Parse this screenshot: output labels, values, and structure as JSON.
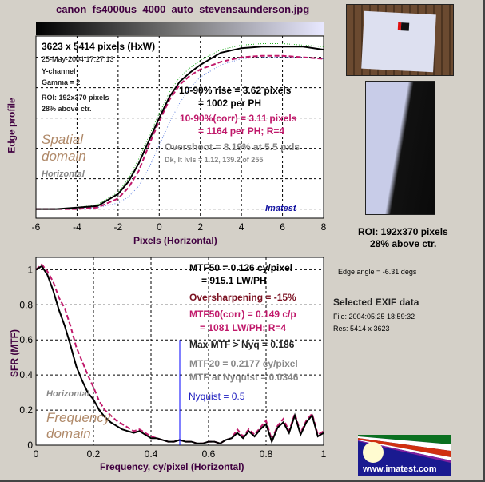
{
  "title": "canon_fs4000us_4000_auto_stevensaunderson.jpg",
  "colors": {
    "background": "#d4d0c8",
    "title": "#400040",
    "black_curve": "#000000",
    "corrected_curve": "#c0186a",
    "green_curve": "#20b020",
    "blue_curve": "#6080e0",
    "nyquist_line": "#0000ff",
    "domain_label": "#b08a6a"
  },
  "top_panel": {
    "size": "3623 x 5414 pixels (HxW)",
    "date": "25-May-2004 17:27:13",
    "channel": "Y-channel",
    "gamma": "Gamma = 2",
    "roi": "ROI: 192x370 pixels",
    "roi_pos": "28% above ctr.",
    "domain_1": "Spatial",
    "domain_2": "domain",
    "direction": "Horizontal",
    "rise": "10-90% rise = 3.62 pixels",
    "rise_ph": "= 1002 per PH",
    "rise_corr": "10-90%(corr) = 3.11 pixels",
    "rise_corr_ph": "= 1164 per PH;  R=4",
    "overshoot": "Overshoot = 8.19% at 5.5 pxls",
    "levels": "Dk, lt lvls = 1.12, 139.2 of 255",
    "brand": "Imatest"
  },
  "bottom_panel": {
    "mtf50": "MTF50 = 0.126 cy/pixel",
    "mtf50_lw": "= 915.1 LW/PH",
    "oversharpening": "Oversharpening = -15%",
    "mtf50_corr": "MTF50(corr) = 0.149 c/p",
    "mtf50_corr_lw": "= 1081 LW/PH;  R=4",
    "max_mtf": "Max MTF > Nyq = 0.186",
    "mtf20": "MTF20 = 0.2177 cy/pixel",
    "mtf_nyq": "MTF at Nyquist = 0.0346",
    "nyquist": "Nyquist = 0.5",
    "direction": "Horizontal",
    "domain_1": "Frequency",
    "domain_2": "domain"
  },
  "side_panel": {
    "roi": "ROI: 192x370 pixels",
    "roi_pos": "28% above ctr.",
    "edge_angle": "Edge angle = -6.31 degs",
    "exif_title": "Selected EXIF data",
    "file": "File:  2004:05:25 18:59:32",
    "res": "Res:   5414 x 3623",
    "logo_text": "www.imatest.com"
  },
  "chart_data": [
    {
      "type": "line",
      "ylabel": "Edge profile",
      "xlabel": "Pixels (Horizontal)",
      "xlim": [
        -6,
        8
      ],
      "xticks": [
        "-6",
        "-4",
        "-2",
        "0",
        "2",
        "4",
        "6",
        "8"
      ],
      "grid": true,
      "x": [
        -6,
        -5,
        -4,
        -3,
        -2,
        -1.5,
        -1,
        -0.5,
        0,
        0.5,
        1,
        1.5,
        2,
        3,
        4,
        5,
        6,
        7,
        8
      ],
      "series": [
        {
          "style": "solid-black",
          "values": [
            0.0,
            0.0,
            0.01,
            0.02,
            0.1,
            0.18,
            0.3,
            0.45,
            0.6,
            0.74,
            0.84,
            0.9,
            0.95,
            1.03,
            1.06,
            1.07,
            1.07,
            1.07,
            1.05
          ]
        },
        {
          "style": "dashed-magenta",
          "values": [
            0.0,
            0.0,
            0.0,
            0.01,
            0.07,
            0.14,
            0.25,
            0.42,
            0.58,
            0.72,
            0.82,
            0.88,
            0.92,
            0.97,
            1.0,
            1.01,
            1.01,
            1.0,
            0.99
          ]
        },
        {
          "style": "dotted-green",
          "values": [
            0.0,
            0.0,
            0.01,
            0.03,
            0.11,
            0.2,
            0.33,
            0.48,
            0.63,
            0.77,
            0.87,
            0.93,
            0.98,
            1.05,
            1.08,
            1.09,
            1.09,
            1.08,
            1.07
          ]
        },
        {
          "style": "dotted-blue",
          "values": [
            0.0,
            0.0,
            0.0,
            0.01,
            0.04,
            0.08,
            0.15,
            0.27,
            0.42,
            0.57,
            0.7,
            0.8,
            0.87,
            0.95,
            0.99,
            1.0,
            1.0,
            1.0,
            0.99
          ]
        }
      ]
    },
    {
      "type": "line",
      "ylabel": "SFR (MTF)",
      "xlabel": "Frequency,  cy/pixel (Horizontal)",
      "xlim": [
        0,
        1
      ],
      "ylim": [
        0,
        1
      ],
      "xticks": [
        "0",
        "0.2",
        "0.4",
        "0.6",
        "0.8",
        "1"
      ],
      "yticks": [
        "0",
        "0.2",
        "0.4",
        "0.6",
        "0.8",
        "1"
      ],
      "grid": true,
      "x": [
        0,
        0.02,
        0.04,
        0.06,
        0.08,
        0.1,
        0.12,
        0.14,
        0.16,
        0.18,
        0.2,
        0.22,
        0.24,
        0.26,
        0.28,
        0.3,
        0.32,
        0.34,
        0.36,
        0.38,
        0.4,
        0.42,
        0.44,
        0.46,
        0.48,
        0.5,
        0.52,
        0.54,
        0.56,
        0.58,
        0.6,
        0.62,
        0.64,
        0.66,
        0.68,
        0.7,
        0.72,
        0.74,
        0.76,
        0.78,
        0.8,
        0.82,
        0.84,
        0.86,
        0.88,
        0.9,
        0.92,
        0.94,
        0.96,
        0.98,
        1.0
      ],
      "series": [
        {
          "style": "solid-black",
          "values": [
            1.0,
            1.02,
            0.97,
            0.88,
            0.77,
            0.68,
            0.57,
            0.45,
            0.37,
            0.3,
            0.26,
            0.2,
            0.16,
            0.13,
            0.11,
            0.09,
            0.08,
            0.07,
            0.08,
            0.06,
            0.04,
            0.04,
            0.03,
            0.02,
            0.02,
            0.03,
            0.02,
            0.02,
            0.01,
            0.01,
            0.02,
            0.02,
            0.01,
            0.03,
            0.04,
            0.07,
            0.04,
            0.08,
            0.05,
            0.09,
            0.12,
            0.02,
            0.1,
            0.13,
            0.07,
            0.17,
            0.06,
            0.13,
            0.17,
            0.05,
            0.07
          ]
        },
        {
          "style": "dashed-magenta",
          "values": [
            1.0,
            1.03,
            0.99,
            0.93,
            0.84,
            0.78,
            0.68,
            0.56,
            0.48,
            0.4,
            0.33,
            0.25,
            0.2,
            0.17,
            0.14,
            0.12,
            0.1,
            0.08,
            0.09,
            0.07,
            0.05,
            0.04,
            0.03,
            0.02,
            0.02,
            0.03,
            0.02,
            0.02,
            0.01,
            0.01,
            0.02,
            0.02,
            0.01,
            0.03,
            0.04,
            0.09,
            0.05,
            0.09,
            0.06,
            0.1,
            0.14,
            0.03,
            0.11,
            0.15,
            0.08,
            0.18,
            0.07,
            0.14,
            0.18,
            0.06,
            0.08
          ]
        }
      ],
      "nyquist_marker": {
        "x": 0.5,
        "height": 0.6
      }
    }
  ]
}
